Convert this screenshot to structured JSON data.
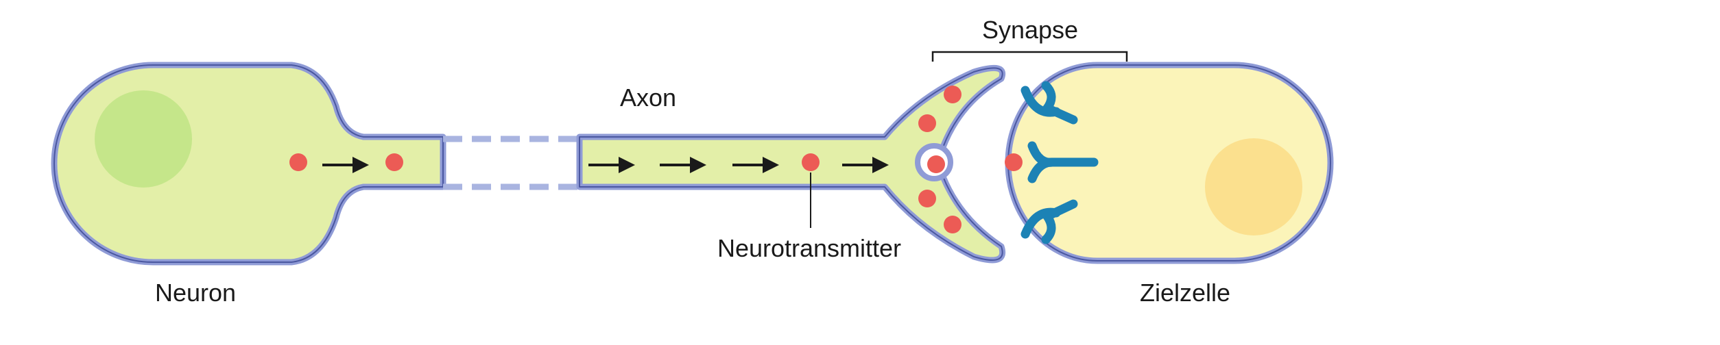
{
  "labels": {
    "neuron": "Neuron",
    "axon": "Axon",
    "neurotransmitter": "Neurotransmitter",
    "synapse": "Synapse",
    "target_cell": "Zielzelle"
  },
  "colors": {
    "cytoplasm_neuron": "#e3efa8",
    "membrane": "#8f9bd6",
    "membrane_outline": "#4a57a0",
    "nucleus_neuron": "#c5e68a",
    "cytoplasm_target": "#fbf4b9",
    "nucleus_target": "#fbe08e",
    "neurotransmitter": "#ec5b55",
    "receptor": "#1c82b5",
    "arrow": "#1a1a1a"
  }
}
